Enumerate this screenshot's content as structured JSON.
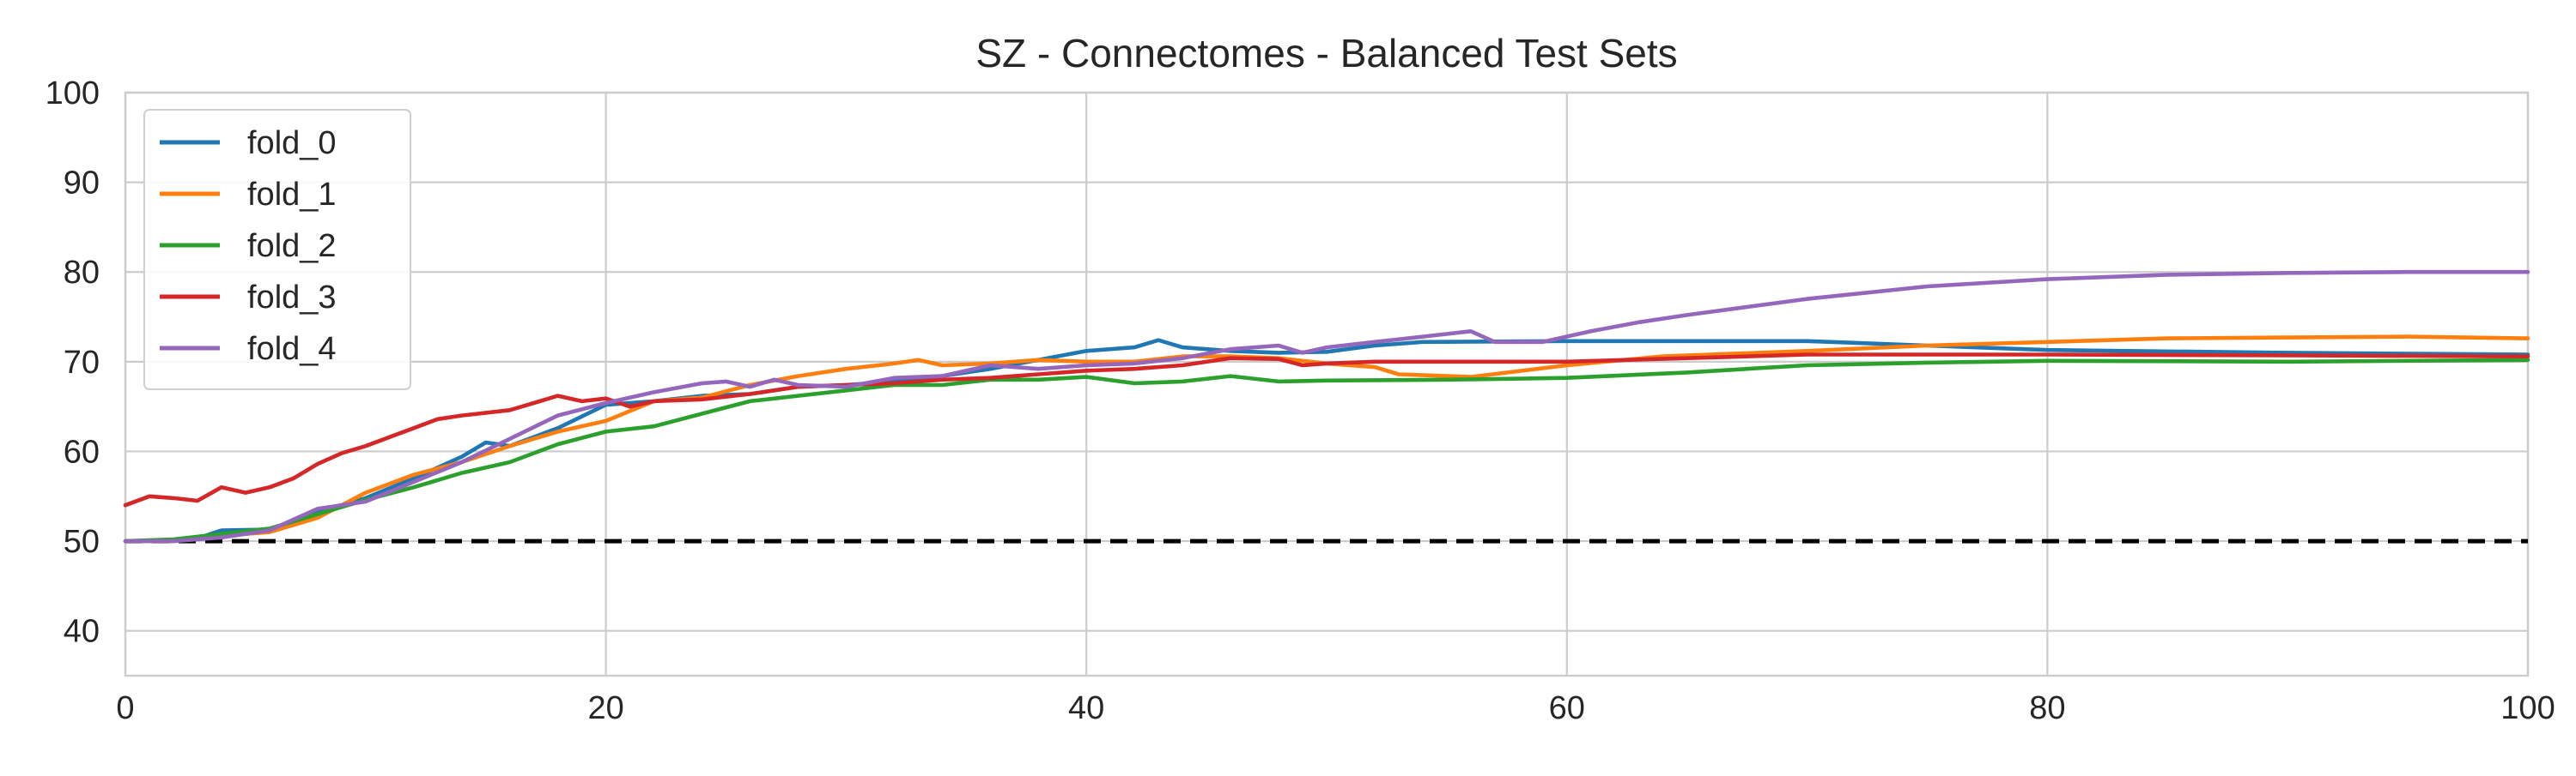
{
  "chart_data": {
    "type": "line",
    "title": "SZ - Connectomes - Balanced Test Sets",
    "xlabel": "",
    "ylabel": "",
    "xlim": [
      0,
      100
    ],
    "ylim": [
      35,
      100
    ],
    "x_ticks": [
      0,
      20,
      40,
      60,
      80,
      100
    ],
    "y_ticks": [
      40,
      50,
      60,
      70,
      80,
      90,
      100
    ],
    "grid": true,
    "legend_position": "top-left",
    "reference_line": {
      "y": 50,
      "style": "dashed",
      "color": "#000000"
    },
    "series": [
      {
        "name": "fold_0",
        "color": "#1f77b4",
        "points": [
          [
            0,
            50
          ],
          [
            2,
            50.1
          ],
          [
            3,
            50.3
          ],
          [
            4,
            51.2
          ],
          [
            6,
            51.3
          ],
          [
            8,
            53.2
          ],
          [
            10,
            54.8
          ],
          [
            12,
            57
          ],
          [
            14,
            59.4
          ],
          [
            15,
            61
          ],
          [
            16,
            60.6
          ],
          [
            18,
            62.6
          ],
          [
            20,
            65.2
          ],
          [
            22,
            65.6
          ],
          [
            24,
            66.2
          ],
          [
            26,
            66.4
          ],
          [
            28,
            67.2
          ],
          [
            30,
            67.4
          ],
          [
            32,
            67.8
          ],
          [
            34,
            68.4
          ],
          [
            36,
            69.2
          ],
          [
            38,
            70.2
          ],
          [
            40,
            71.2
          ],
          [
            42,
            71.6
          ],
          [
            43,
            72.4
          ],
          [
            44,
            71.6
          ],
          [
            46,
            71.2
          ],
          [
            48,
            71
          ],
          [
            50,
            71.1
          ],
          [
            52,
            71.8
          ],
          [
            54,
            72.2
          ],
          [
            60,
            72.3
          ],
          [
            70,
            72.3
          ],
          [
            75,
            71.8
          ],
          [
            80,
            71.3
          ],
          [
            90,
            71
          ],
          [
            100,
            70.8
          ]
        ]
      },
      {
        "name": "fold_1",
        "color": "#ff7f0e",
        "points": [
          [
            0,
            50
          ],
          [
            2,
            50
          ],
          [
            4,
            50.6
          ],
          [
            6,
            51
          ],
          [
            8,
            52.6
          ],
          [
            10,
            55.4
          ],
          [
            12,
            57.4
          ],
          [
            14,
            58.8
          ],
          [
            16,
            60.6
          ],
          [
            18,
            62.2
          ],
          [
            20,
            63.4
          ],
          [
            22,
            65.6
          ],
          [
            24,
            66
          ],
          [
            26,
            67.4
          ],
          [
            28,
            68.4
          ],
          [
            30,
            69.2
          ],
          [
            32,
            69.8
          ],
          [
            33,
            70.2
          ],
          [
            34,
            69.6
          ],
          [
            36,
            69.8
          ],
          [
            38,
            70.2
          ],
          [
            40,
            70
          ],
          [
            42,
            70
          ],
          [
            44,
            70.6
          ],
          [
            46,
            70.6
          ],
          [
            48,
            70.4
          ],
          [
            50,
            69.8
          ],
          [
            52,
            69.4
          ],
          [
            53,
            68.6
          ],
          [
            56,
            68.3
          ],
          [
            60,
            69.6
          ],
          [
            64,
            70.6
          ],
          [
            70,
            71.2
          ],
          [
            75,
            71.8
          ],
          [
            80,
            72.2
          ],
          [
            85,
            72.6
          ],
          [
            90,
            72.7
          ],
          [
            95,
            72.8
          ],
          [
            100,
            72.6
          ]
        ]
      },
      {
        "name": "fold_2",
        "color": "#2ca02c",
        "points": [
          [
            0,
            50
          ],
          [
            2,
            50.2
          ],
          [
            4,
            50.8
          ],
          [
            6,
            51.4
          ],
          [
            8,
            53
          ],
          [
            10,
            54.6
          ],
          [
            12,
            56
          ],
          [
            14,
            57.6
          ],
          [
            16,
            58.8
          ],
          [
            18,
            60.8
          ],
          [
            20,
            62.2
          ],
          [
            22,
            62.8
          ],
          [
            24,
            64.2
          ],
          [
            26,
            65.6
          ],
          [
            28,
            66.2
          ],
          [
            30,
            66.8
          ],
          [
            32,
            67.4
          ],
          [
            34,
            67.4
          ],
          [
            36,
            68
          ],
          [
            38,
            68
          ],
          [
            40,
            68.3
          ],
          [
            42,
            67.6
          ],
          [
            44,
            67.8
          ],
          [
            46,
            68.4
          ],
          [
            48,
            67.8
          ],
          [
            50,
            67.9
          ],
          [
            55,
            68
          ],
          [
            60,
            68.2
          ],
          [
            65,
            68.8
          ],
          [
            70,
            69.6
          ],
          [
            75,
            69.9
          ],
          [
            80,
            70.1
          ],
          [
            90,
            70
          ],
          [
            100,
            70.2
          ]
        ]
      },
      {
        "name": "fold_3",
        "color": "#d62728",
        "points": [
          [
            0,
            54
          ],
          [
            1,
            55
          ],
          [
            2,
            54.8
          ],
          [
            3,
            54.5
          ],
          [
            4,
            56
          ],
          [
            5,
            55.4
          ],
          [
            6,
            56
          ],
          [
            7,
            57
          ],
          [
            8,
            58.6
          ],
          [
            9,
            59.8
          ],
          [
            10,
            60.6
          ],
          [
            11,
            61.6
          ],
          [
            12,
            62.6
          ],
          [
            13,
            63.6
          ],
          [
            14,
            64
          ],
          [
            16,
            64.6
          ],
          [
            17,
            65.4
          ],
          [
            18,
            66.2
          ],
          [
            19,
            65.6
          ],
          [
            20,
            65.9
          ],
          [
            21,
            65
          ],
          [
            22,
            65.6
          ],
          [
            24,
            65.8
          ],
          [
            26,
            66.4
          ],
          [
            28,
            67.2
          ],
          [
            30,
            67.4
          ],
          [
            32,
            67.6
          ],
          [
            34,
            68
          ],
          [
            36,
            68.2
          ],
          [
            38,
            68.6
          ],
          [
            40,
            69
          ],
          [
            42,
            69.2
          ],
          [
            44,
            69.6
          ],
          [
            46,
            70.4
          ],
          [
            48,
            70.3
          ],
          [
            49,
            69.6
          ],
          [
            50,
            69.8
          ],
          [
            52,
            70
          ],
          [
            55,
            70
          ],
          [
            60,
            70
          ],
          [
            65,
            70.4
          ],
          [
            70,
            70.8
          ],
          [
            80,
            70.8
          ],
          [
            90,
            70.7
          ],
          [
            100,
            70.6
          ]
        ]
      },
      {
        "name": "fold_4",
        "color": "#9467bd",
        "points": [
          [
            0,
            50
          ],
          [
            2,
            50
          ],
          [
            4,
            50.4
          ],
          [
            6,
            51.2
          ],
          [
            8,
            53.6
          ],
          [
            10,
            54.4
          ],
          [
            12,
            56.6
          ],
          [
            14,
            58.8
          ],
          [
            16,
            61.4
          ],
          [
            18,
            64
          ],
          [
            20,
            65.4
          ],
          [
            22,
            66.6
          ],
          [
            24,
            67.6
          ],
          [
            25,
            67.8
          ],
          [
            26,
            67.2
          ],
          [
            27,
            68
          ],
          [
            28,
            67.4
          ],
          [
            30,
            67.2
          ],
          [
            32,
            68.2
          ],
          [
            34,
            68.4
          ],
          [
            36,
            69.6
          ],
          [
            38,
            69.2
          ],
          [
            40,
            69.6
          ],
          [
            42,
            69.8
          ],
          [
            44,
            70.4
          ],
          [
            46,
            71.4
          ],
          [
            48,
            71.8
          ],
          [
            49,
            71
          ],
          [
            50,
            71.6
          ],
          [
            52,
            72.2
          ],
          [
            54,
            72.8
          ],
          [
            56,
            73.4
          ],
          [
            57,
            72.2
          ],
          [
            59,
            72.2
          ],
          [
            61,
            73.4
          ],
          [
            63,
            74.4
          ],
          [
            65,
            75.2
          ],
          [
            70,
            77
          ],
          [
            75,
            78.4
          ],
          [
            80,
            79.2
          ],
          [
            85,
            79.7
          ],
          [
            90,
            79.9
          ],
          [
            95,
            80
          ],
          [
            100,
            80
          ]
        ]
      }
    ]
  }
}
